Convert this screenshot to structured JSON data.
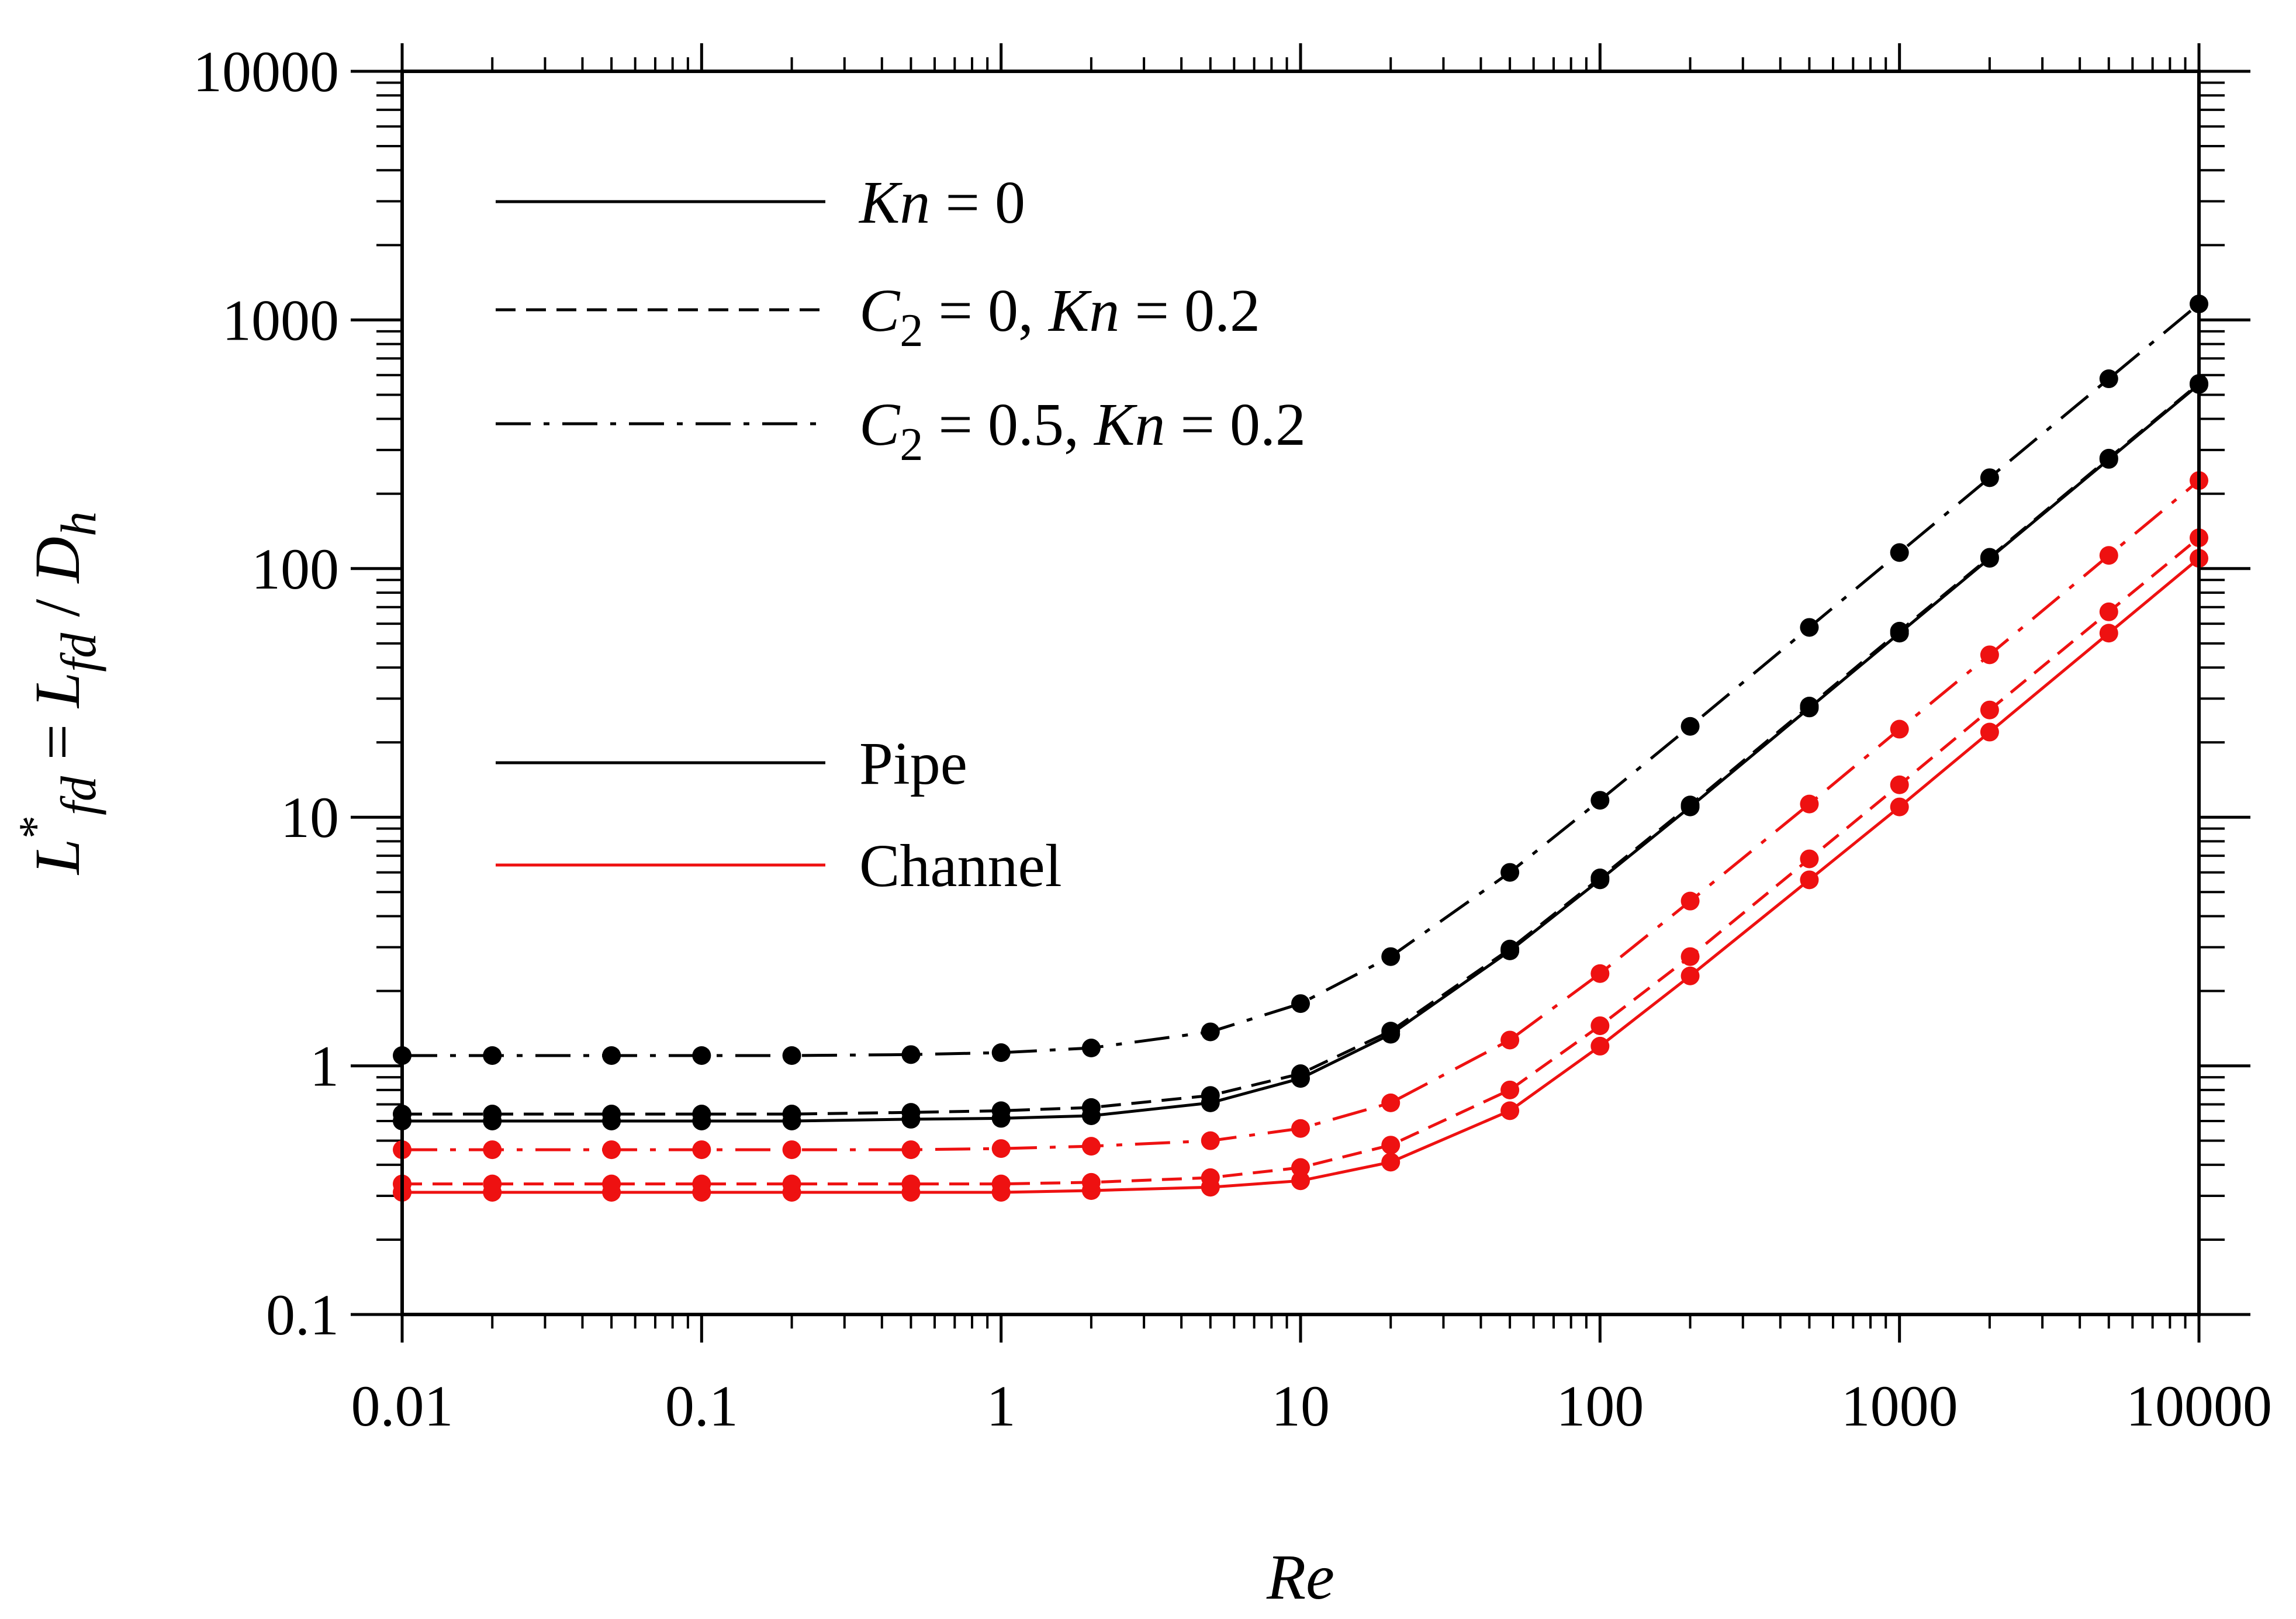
{
  "chart_data": {
    "type": "line",
    "title": "",
    "xlabel": "Re",
    "ylabel": "L*fd = Lfd / Dh",
    "xscale": "log",
    "yscale": "log",
    "xlim": [
      0.01,
      10000
    ],
    "ylim": [
      0.1,
      10000
    ],
    "xticks": [
      "0.01",
      "0.1",
      "1",
      "10",
      "100",
      "1000",
      "10000"
    ],
    "yticks": [
      "0.1",
      "1",
      "10",
      "100",
      "1000",
      "10000"
    ],
    "x": [
      0.01,
      0.02,
      0.05,
      0.1,
      0.2,
      0.5,
      1,
      2,
      5,
      10,
      20,
      50,
      100,
      200,
      500,
      1000,
      2000,
      5000,
      10000
    ],
    "legend": {
      "position": "top-left",
      "line_styles": [
        {
          "style": "solid",
          "parts": [
            {
              "t": "Kn",
              "i": true
            },
            {
              "t": " = 0",
              "i": false
            }
          ]
        },
        {
          "style": "dashed",
          "parts": [
            {
              "t": "C",
              "i": true
            },
            {
              "t": "2",
              "i": false,
              "sub": true
            },
            {
              "t": " = 0, ",
              "i": false
            },
            {
              "t": "Kn",
              "i": true
            },
            {
              "t": " = 0.2",
              "i": false
            }
          ]
        },
        {
          "style": "dashdot",
          "parts": [
            {
              "t": "C",
              "i": true
            },
            {
              "t": "2",
              "i": false,
              "sub": true
            },
            {
              "t": " = 0.5, ",
              "i": false
            },
            {
              "t": "Kn",
              "i": true
            },
            {
              "t": " = 0.2",
              "i": false
            }
          ]
        }
      ],
      "geometries": [
        {
          "label": "Pipe",
          "color": "#000000"
        },
        {
          "label": "Channel",
          "color": "#ee1111"
        }
      ]
    },
    "series": [
      {
        "name": "Pipe, Kn = 0",
        "geometry": "Pipe",
        "style": "solid",
        "color": "#000000",
        "values": [
          0.6,
          0.6,
          0.6,
          0.6,
          0.6,
          0.61,
          0.615,
          0.63,
          0.71,
          0.89,
          1.34,
          2.9,
          5.6,
          11,
          27.5,
          55,
          110,
          275,
          550
        ]
      },
      {
        "name": "Pipe, C2 = 0, Kn = 0.2",
        "geometry": "Pipe",
        "style": "dashed",
        "color": "#000000",
        "values": [
          0.64,
          0.64,
          0.64,
          0.64,
          0.64,
          0.65,
          0.66,
          0.68,
          0.76,
          0.93,
          1.38,
          2.95,
          5.7,
          11.2,
          28,
          56,
          111,
          278,
          555
        ]
      },
      {
        "name": "Pipe, C2 = 0.5, Kn = 0.2",
        "geometry": "Pipe",
        "style": "dashdot",
        "color": "#000000",
        "values": [
          1.1,
          1.1,
          1.1,
          1.1,
          1.1,
          1.11,
          1.13,
          1.18,
          1.37,
          1.78,
          2.75,
          6.0,
          11.7,
          23.2,
          58,
          116,
          232,
          580,
          1160
        ]
      },
      {
        "name": "Channel, Kn = 0",
        "geometry": "Channel",
        "style": "solid",
        "color": "#ee1111",
        "values": [
          0.31,
          0.31,
          0.31,
          0.31,
          0.31,
          0.31,
          0.31,
          0.315,
          0.325,
          0.345,
          0.41,
          0.66,
          1.2,
          2.3,
          5.6,
          11,
          22,
          55,
          110
        ]
      },
      {
        "name": "Channel, C2 = 0, Kn = 0.2",
        "geometry": "Channel",
        "style": "dashed",
        "color": "#ee1111",
        "values": [
          0.335,
          0.335,
          0.335,
          0.335,
          0.335,
          0.335,
          0.335,
          0.34,
          0.355,
          0.39,
          0.48,
          0.8,
          1.45,
          2.75,
          6.8,
          13.5,
          27,
          67,
          133
        ]
      },
      {
        "name": "Channel, C2 = 0.5, Kn = 0.2",
        "geometry": "Channel",
        "style": "dashdot",
        "color": "#ee1111",
        "values": [
          0.46,
          0.46,
          0.46,
          0.46,
          0.46,
          0.46,
          0.465,
          0.475,
          0.5,
          0.56,
          0.71,
          1.27,
          2.35,
          4.6,
          11.3,
          22.6,
          45,
          113,
          226
        ]
      }
    ]
  }
}
